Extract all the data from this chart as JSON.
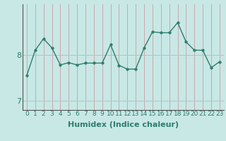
{
  "x": [
    0,
    1,
    2,
    3,
    4,
    5,
    6,
    7,
    8,
    9,
    10,
    11,
    12,
    13,
    14,
    15,
    16,
    17,
    18,
    19,
    20,
    21,
    22,
    23
  ],
  "y": [
    7.55,
    8.1,
    8.35,
    8.15,
    7.78,
    7.83,
    7.78,
    7.82,
    7.82,
    7.82,
    8.22,
    7.77,
    7.69,
    7.69,
    8.15,
    8.5,
    8.48,
    8.48,
    8.7,
    8.28,
    8.1,
    8.1,
    7.72,
    7.85
  ],
  "line_color": "#2E7D6E",
  "marker": "o",
  "markersize": 2.5,
  "linewidth": 1.0,
  "bg_color": "#C8E8E5",
  "grid_color_v": "#B0CECA",
  "grid_color_h": "#A8C8C4",
  "xlabel": "Humidex (Indice chaleur)",
  "xlabel_fontsize": 8,
  "xlabel_fontweight": "bold",
  "yticks": [
    7,
    8
  ],
  "ylim": [
    6.8,
    9.1
  ],
  "xlim": [
    -0.5,
    23.5
  ],
  "xtick_labels": [
    "0",
    "1",
    "2",
    "3",
    "4",
    "5",
    "6",
    "7",
    "8",
    "9",
    "10",
    "11",
    "12",
    "13",
    "14",
    "15",
    "16",
    "17",
    "18",
    "19",
    "20",
    "21",
    "22",
    "23"
  ],
  "tick_fontsize": 6.5,
  "ytick_fontsize": 8
}
